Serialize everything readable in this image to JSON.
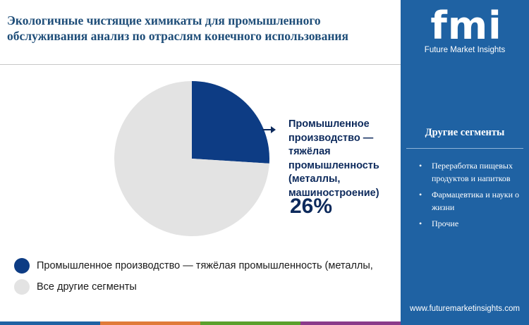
{
  "title": "Экологичные чистящие химикаты для промышленного обслуживания анализ по отраслям конечного использования",
  "chart_data": {
    "type": "pie",
    "slices": [
      {
        "name": "Промышленное производство — тяжёлая промышленность (металлы,",
        "value": 26,
        "color": "#0d3c84"
      },
      {
        "name": "Все другие сегменты",
        "value": 74,
        "color": "#e3e3e3"
      }
    ],
    "callout": {
      "label": "Промышленное производство — тяжёлая промышленность (металлы, машиностроение)",
      "value": "26%"
    },
    "legend_position": "bottom-left"
  },
  "sidebar": {
    "logo_text": "fmi",
    "logo_subtitle": "Future Market Insights",
    "heading": "Другие сегменты",
    "items": [
      "Переработка пищевых продуктов и напитков",
      "Фармацевтика и науки о жизни",
      "Прочие"
    ],
    "url": "www.futuremarketinsights.com"
  },
  "colors": {
    "accent": "#1f62a3",
    "title": "#1f4e79",
    "bottom_bar": [
      "#1f62a3",
      "#e07b39",
      "#5aa02c",
      "#8a3a8a"
    ]
  }
}
